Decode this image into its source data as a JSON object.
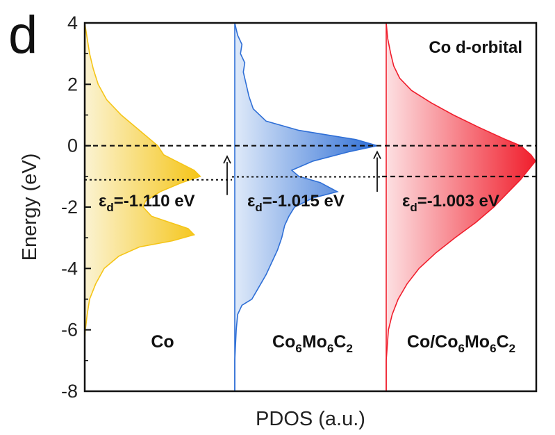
{
  "panel_label": "d",
  "chart_data": {
    "type": "area",
    "title": "Co d-orbital",
    "xlabel": "PDOS (a.u.)",
    "ylabel": "Energy (eV)",
    "ylim": [
      -8,
      4
    ],
    "yticks": [
      4,
      2,
      0,
      -2,
      -4,
      -6,
      -8
    ],
    "fermi_level": 0,
    "series": [
      {
        "name": "Co",
        "sub": "",
        "color": "#f5c518",
        "fade": "#fbf3d2",
        "d_band_center_label": "-1.110 eV",
        "d_band_center": -1.11,
        "energy": [
          4.0,
          3.5,
          3.0,
          2.5,
          2.0,
          1.5,
          1.0,
          0.5,
          0.0,
          -0.3,
          -0.5,
          -0.8,
          -1.0,
          -1.2,
          -1.5,
          -1.8,
          -2.0,
          -2.3,
          -2.5,
          -2.7,
          -2.9,
          -3.1,
          -3.3,
          -3.6,
          -4.0,
          -4.5,
          -5.0,
          -5.5,
          -6.0,
          -6.3
        ],
        "pdos": [
          0.0,
          0.02,
          0.04,
          0.07,
          0.11,
          0.18,
          0.3,
          0.45,
          0.6,
          0.65,
          0.75,
          0.9,
          0.95,
          0.8,
          0.62,
          0.5,
          0.48,
          0.55,
          0.7,
          0.85,
          0.9,
          0.72,
          0.45,
          0.28,
          0.16,
          0.09,
          0.04,
          0.02,
          0.005,
          0.0
        ]
      },
      {
        "name": "Co",
        "sub": "6",
        "name2": "Mo",
        "sub2": "6",
        "name3": "C",
        "sub3": "2",
        "color": "#2f6fd6",
        "fade": "#dfeaf9",
        "d_band_center_label": "-1.015 eV",
        "d_band_center": -1.015,
        "energy": [
          4.0,
          3.6,
          3.3,
          3.0,
          2.7,
          2.4,
          2.0,
          1.6,
          1.2,
          0.8,
          0.5,
          0.2,
          0.0,
          -0.2,
          -0.5,
          -0.8,
          -1.0,
          -1.2,
          -1.5,
          -1.7,
          -2.0,
          -2.3,
          -2.6,
          -3.0,
          -3.4,
          -3.8,
          -4.2,
          -4.6,
          -5.0,
          -5.2,
          -5.5,
          -6.0,
          -7.0,
          -8.0
        ],
        "pdos": [
          0.0,
          0.02,
          0.05,
          0.04,
          0.07,
          0.06,
          0.08,
          0.1,
          0.13,
          0.22,
          0.45,
          0.85,
          1.0,
          0.8,
          0.55,
          0.4,
          0.45,
          0.6,
          0.72,
          0.55,
          0.42,
          0.38,
          0.35,
          0.33,
          0.3,
          0.26,
          0.22,
          0.17,
          0.12,
          0.05,
          0.02,
          0.01,
          0.0,
          0.0
        ]
      },
      {
        "name": "Co/Co",
        "sub": "6",
        "name2": "Mo",
        "sub2": "6",
        "name3": "C",
        "sub3": "2",
        "color": "#f01e2c",
        "fade": "#fde0e2",
        "d_band_center_label": "-1.003 eV",
        "d_band_center": -1.003,
        "energy": [
          4.0,
          3.5,
          3.0,
          2.6,
          2.2,
          1.8,
          1.4,
          1.0,
          0.6,
          0.2,
          0.0,
          -0.3,
          -0.5,
          -0.8,
          -1.1,
          -1.5,
          -2.0,
          -2.5,
          -3.0,
          -3.5,
          -4.0,
          -4.5,
          -5.0,
          -5.5,
          -6.0,
          -7.0,
          -8.0
        ],
        "pdos": [
          0.0,
          0.01,
          0.03,
          0.05,
          0.09,
          0.17,
          0.3,
          0.45,
          0.62,
          0.8,
          0.9,
          0.97,
          1.0,
          0.95,
          0.9,
          0.82,
          0.72,
          0.6,
          0.46,
          0.33,
          0.22,
          0.14,
          0.08,
          0.04,
          0.015,
          0.0,
          0.0
        ]
      }
    ],
    "ed_prefix": "ε",
    "ed_sub": "d",
    "ed_eq": "="
  }
}
